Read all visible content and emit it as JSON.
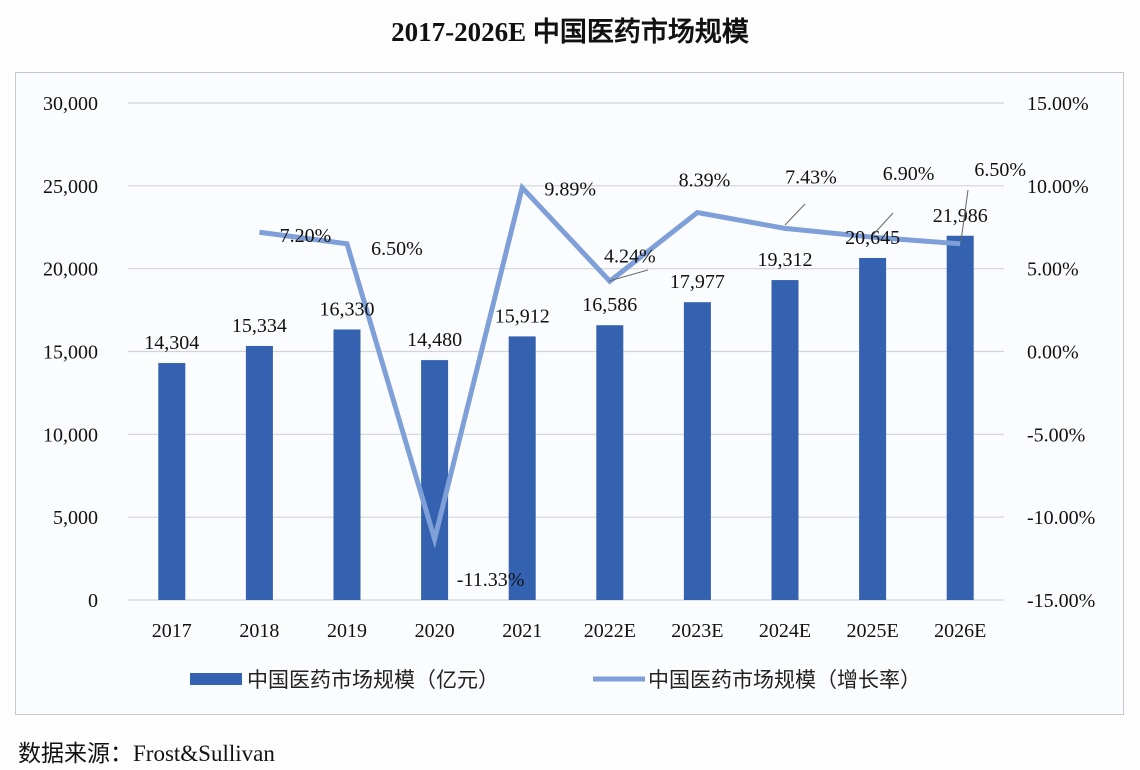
{
  "chart_data": {
    "type": "bar+line",
    "title": "2017-2026E 中国医药市场规模",
    "categories": [
      "2017",
      "2018",
      "2019",
      "2020",
      "2021",
      "2022E",
      "2023E",
      "2024E",
      "2025E",
      "2026E"
    ],
    "series": [
      {
        "name": "中国医药市场规模（亿元）",
        "type": "bar",
        "axis": "left",
        "color": "#3462b0",
        "values": [
          14304,
          15334,
          16330,
          14480,
          15912,
          16586,
          17977,
          19312,
          20645,
          21986
        ],
        "labels": [
          "14,304",
          "15,334",
          "16,330",
          "14,480",
          "15,912",
          "16,586",
          "17,977",
          "19,312",
          "20,645",
          "21,986"
        ]
      },
      {
        "name": "中国医药市场规模（增长率）",
        "type": "line",
        "axis": "right",
        "color": "#7f9fd8",
        "values": [
          null,
          7.2,
          6.5,
          -11.33,
          9.89,
          4.24,
          8.39,
          7.43,
          6.9,
          6.5
        ],
        "labels": [
          "",
          "7.20%",
          "6.50%",
          "-11.33%",
          "9.89%",
          "4.24%",
          "8.39%",
          "7.43%",
          "6.90%",
          "6.50%"
        ]
      }
    ],
    "left_axis": {
      "ylim": [
        0,
        30000
      ],
      "ticks": [
        "0",
        "5,000",
        "10,000",
        "15,000",
        "20,000",
        "25,000",
        "30,000"
      ],
      "tick_values": [
        0,
        5000,
        10000,
        15000,
        20000,
        25000,
        30000
      ]
    },
    "right_axis": {
      "ylim": [
        -15,
        15
      ],
      "ticks": [
        "-15.00%",
        "-10.00%",
        "-5.00%",
        "0.00%",
        "5.00%",
        "10.00%",
        "15.00%"
      ],
      "tick_values": [
        -15,
        -10,
        -5,
        0,
        5,
        10,
        15
      ]
    },
    "grid": true,
    "legend": "bottom",
    "xlabel": "",
    "ylabel": ""
  },
  "source": "数据来源：Frost&Sullivan"
}
